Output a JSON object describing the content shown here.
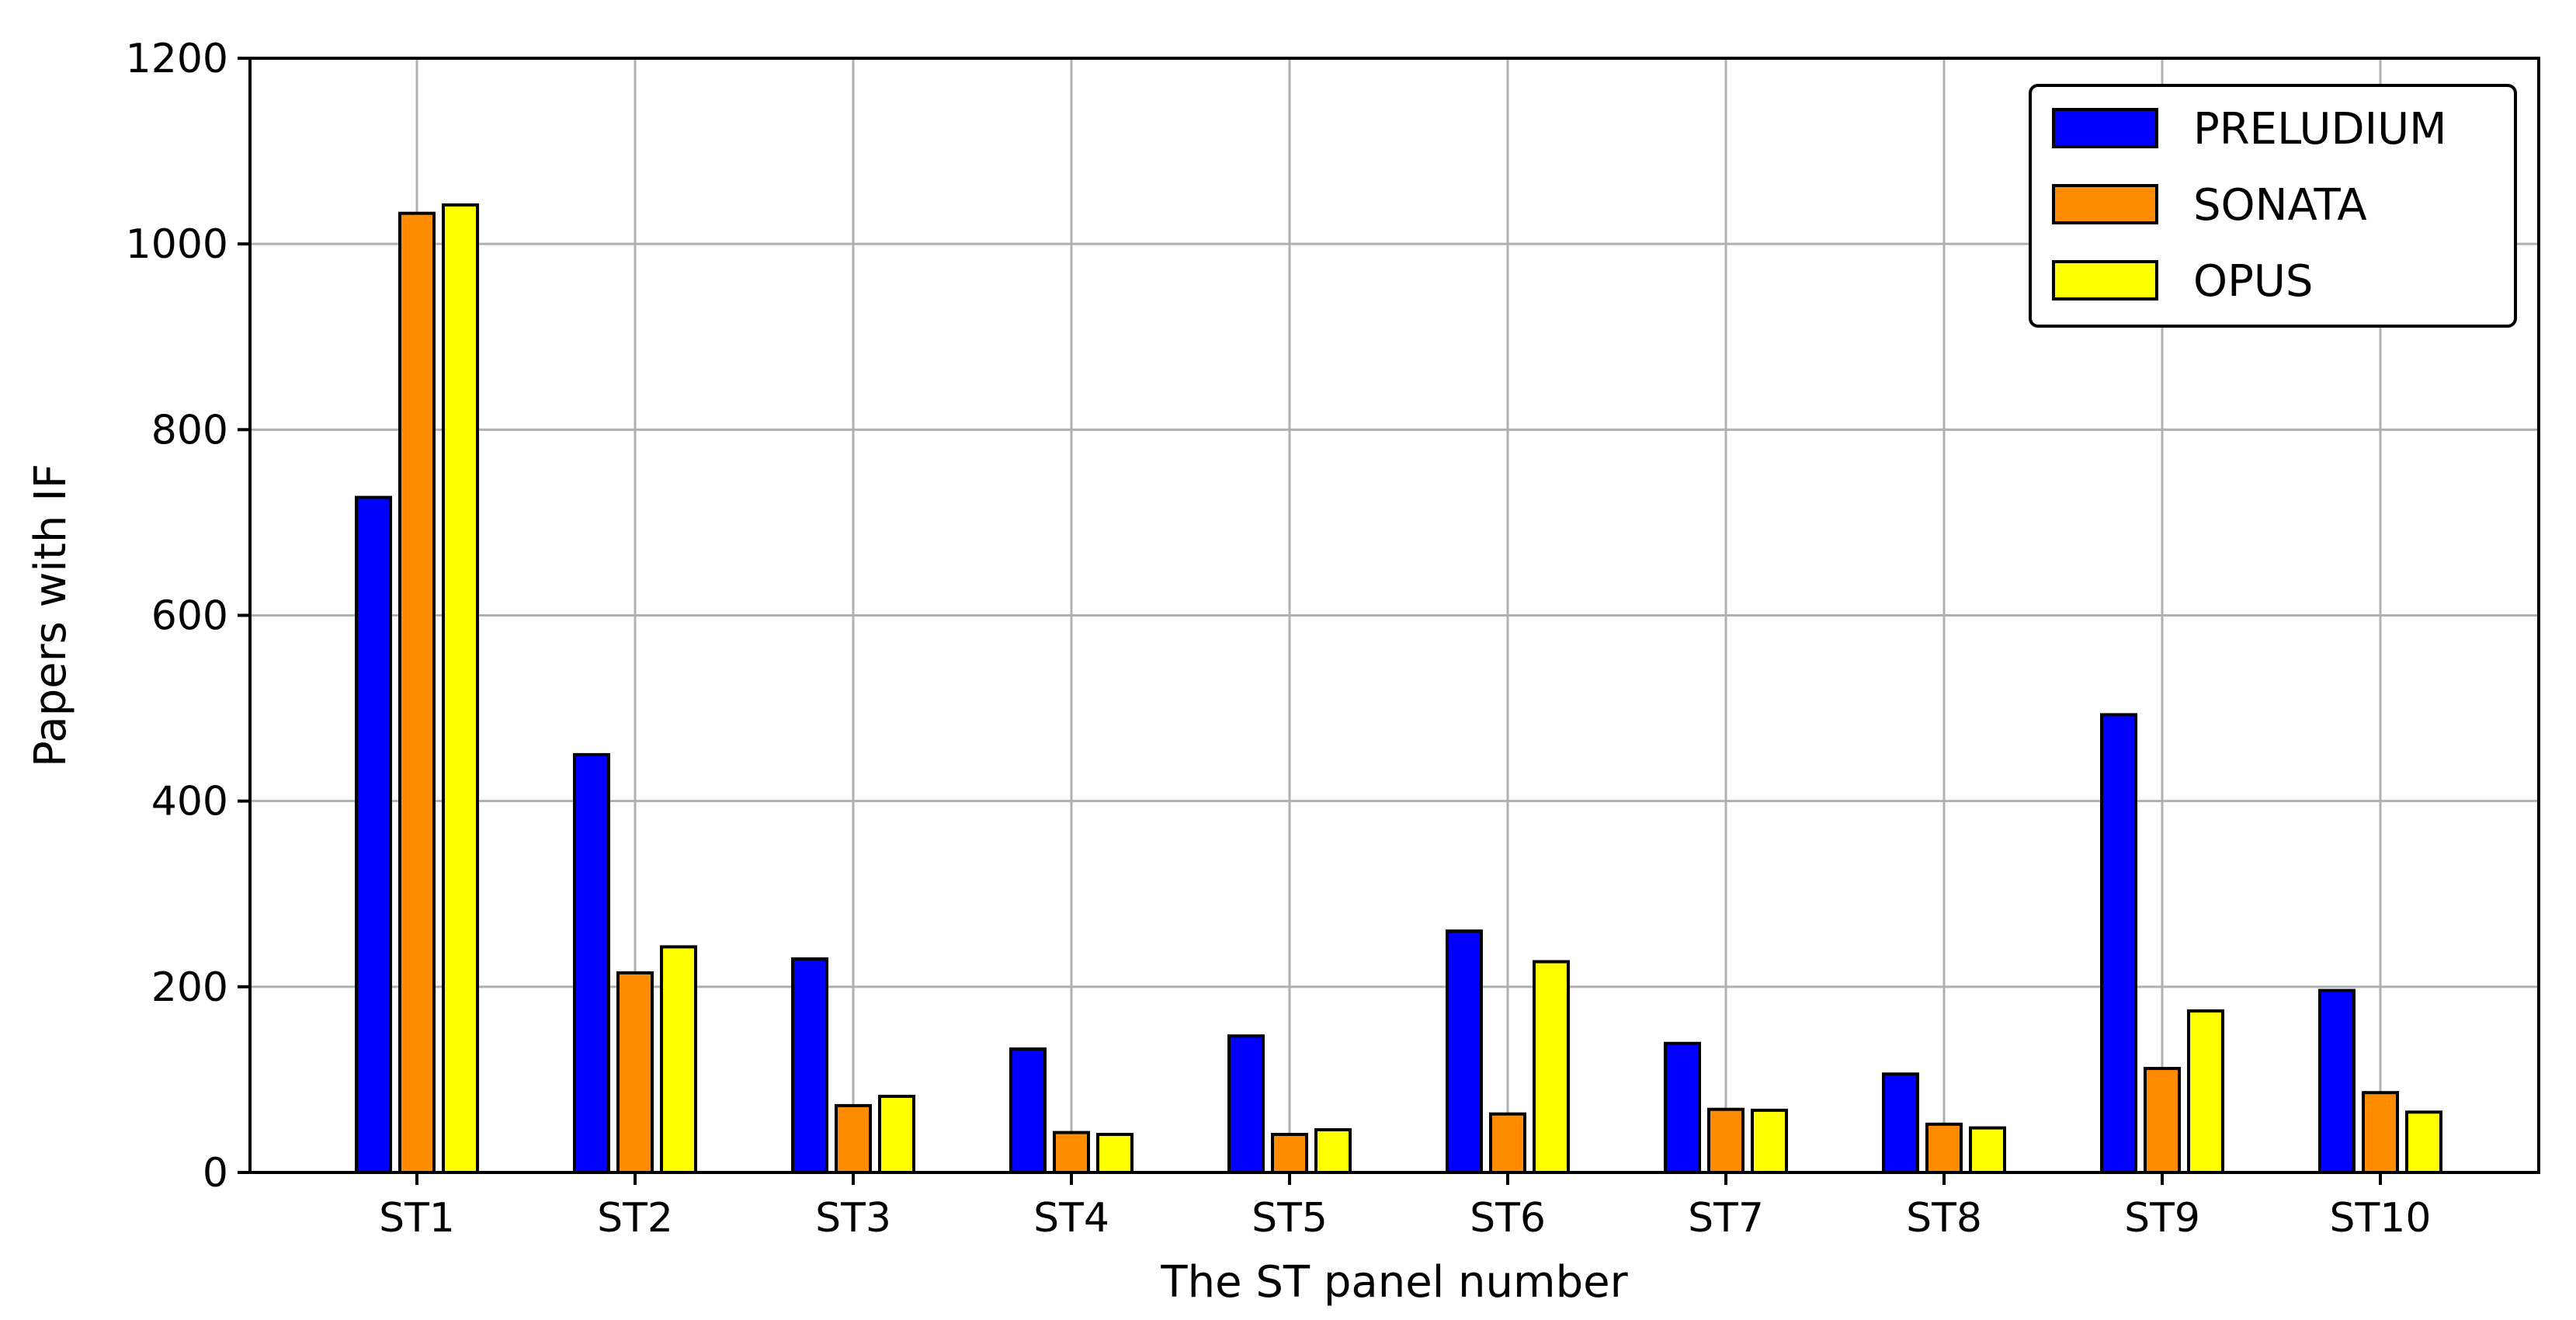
{
  "chart_data": {
    "type": "bar",
    "title": "",
    "xlabel": "The ST panel number",
    "ylabel": "Papers with IF",
    "ylim": [
      0,
      1200
    ],
    "yticks": [
      0,
      200,
      400,
      600,
      800,
      1000,
      1200
    ],
    "grid": true,
    "legend_position": "top-right",
    "categories": [
      "ST1",
      "ST2",
      "ST3",
      "ST4",
      "ST5",
      "ST6",
      "ST7",
      "ST8",
      "ST9",
      "ST10"
    ],
    "series": [
      {
        "name": "PRELUDIUM",
        "color": "#0000ff",
        "values": [
          727,
          450,
          230,
          133,
          147,
          260,
          139,
          106,
          493,
          196
        ]
      },
      {
        "name": "SONATA",
        "color": "#ff8c00",
        "values": [
          1033,
          215,
          72,
          43,
          41,
          63,
          68,
          52,
          112,
          86
        ]
      },
      {
        "name": "OPUS",
        "color": "#ffff00",
        "values": [
          1042,
          243,
          82,
          41,
          46,
          227,
          67,
          48,
          174,
          65
        ]
      }
    ]
  }
}
